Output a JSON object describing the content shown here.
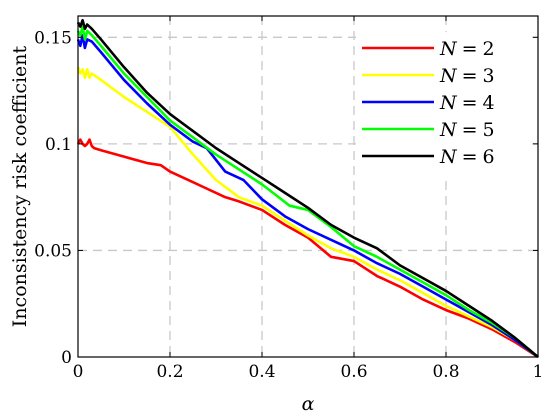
{
  "chart_data": {
    "type": "line",
    "title": "",
    "xlabel": "α",
    "ylabel": "Inconsistency risk coefficient",
    "xlim": [
      0,
      1
    ],
    "ylim": [
      0,
      0.16
    ],
    "xticks": [
      0,
      0.2,
      0.4,
      0.6,
      0.8,
      1
    ],
    "xtick_labels": [
      "0",
      "0.2",
      "0.4",
      "0.6",
      "0.8",
      "1"
    ],
    "yticks": [
      0,
      0.05,
      0.1,
      0.15
    ],
    "ytick_labels": [
      "0",
      "0.05",
      "0.1",
      "0.15"
    ],
    "grid": true,
    "legend_position": "top-right",
    "series": [
      {
        "name": "N = 2",
        "legend": {
          "var": "N",
          "eq": "=",
          "value": "2"
        },
        "color": "#ff0000",
        "x": [
          0,
          0.005,
          0.01,
          0.015,
          0.02,
          0.025,
          0.03,
          0.035,
          0.05,
          0.1,
          0.15,
          0.18,
          0.2,
          0.25,
          0.28,
          0.32,
          0.35,
          0.4,
          0.45,
          0.5,
          0.55,
          0.6,
          0.65,
          0.7,
          0.75,
          0.8,
          0.85,
          0.9,
          0.95,
          1.0
        ],
        "y": [
          0.1,
          0.102,
          0.1,
          0.099,
          0.1,
          0.102,
          0.099,
          0.098,
          0.097,
          0.094,
          0.091,
          0.09,
          0.087,
          0.082,
          0.079,
          0.075,
          0.073,
          0.069,
          0.062,
          0.056,
          0.047,
          0.045,
          0.038,
          0.033,
          0.027,
          0.022,
          0.018,
          0.013,
          0.007,
          0.0
        ]
      },
      {
        "name": "N = 3",
        "legend": {
          "var": "N",
          "eq": "=",
          "value": "3"
        },
        "color": "#ffff00",
        "x": [
          0,
          0.005,
          0.01,
          0.015,
          0.02,
          0.025,
          0.03,
          0.05,
          0.1,
          0.15,
          0.2,
          0.25,
          0.3,
          0.35,
          0.4,
          0.45,
          0.5,
          0.55,
          0.6,
          0.65,
          0.7,
          0.75,
          0.8,
          0.85,
          0.9,
          0.95,
          1.0
        ],
        "y": [
          0.136,
          0.133,
          0.135,
          0.131,
          0.135,
          0.131,
          0.133,
          0.13,
          0.122,
          0.115,
          0.108,
          0.095,
          0.083,
          0.075,
          0.071,
          0.064,
          0.057,
          0.051,
          0.047,
          0.041,
          0.036,
          0.03,
          0.024,
          0.019,
          0.014,
          0.008,
          0.0
        ]
      },
      {
        "name": "N = 4",
        "legend": {
          "var": "N",
          "eq": "=",
          "value": "4"
        },
        "color": "#0000ff",
        "x": [
          0,
          0.005,
          0.01,
          0.015,
          0.02,
          0.03,
          0.05,
          0.1,
          0.15,
          0.2,
          0.25,
          0.28,
          0.32,
          0.36,
          0.4,
          0.45,
          0.5,
          0.55,
          0.6,
          0.65,
          0.7,
          0.75,
          0.8,
          0.85,
          0.9,
          0.95,
          1.0
        ],
        "y": [
          0.149,
          0.146,
          0.151,
          0.145,
          0.149,
          0.148,
          0.143,
          0.13,
          0.119,
          0.109,
          0.101,
          0.098,
          0.087,
          0.083,
          0.074,
          0.066,
          0.06,
          0.055,
          0.05,
          0.044,
          0.039,
          0.033,
          0.027,
          0.021,
          0.015,
          0.008,
          0.0
        ]
      },
      {
        "name": "N = 5",
        "legend": {
          "var": "N",
          "eq": "=",
          "value": "5"
        },
        "color": "#00ff00",
        "x": [
          0,
          0.005,
          0.01,
          0.015,
          0.02,
          0.03,
          0.05,
          0.1,
          0.15,
          0.2,
          0.25,
          0.3,
          0.35,
          0.4,
          0.43,
          0.46,
          0.5,
          0.55,
          0.6,
          0.65,
          0.7,
          0.75,
          0.8,
          0.85,
          0.9,
          0.95,
          1.0
        ],
        "y": [
          0.153,
          0.151,
          0.155,
          0.149,
          0.153,
          0.151,
          0.146,
          0.133,
          0.122,
          0.111,
          0.103,
          0.095,
          0.088,
          0.081,
          0.076,
          0.071,
          0.069,
          0.061,
          0.052,
          0.047,
          0.041,
          0.035,
          0.029,
          0.022,
          0.016,
          0.009,
          0.0
        ]
      },
      {
        "name": "N = 6",
        "legend": {
          "var": "N",
          "eq": "=",
          "value": "6"
        },
        "color": "#000000",
        "x": [
          0,
          0.005,
          0.01,
          0.015,
          0.02,
          0.03,
          0.05,
          0.1,
          0.15,
          0.2,
          0.25,
          0.3,
          0.35,
          0.4,
          0.45,
          0.5,
          0.55,
          0.6,
          0.65,
          0.7,
          0.75,
          0.8,
          0.85,
          0.9,
          0.95,
          1.0
        ],
        "y": [
          0.157,
          0.155,
          0.158,
          0.154,
          0.156,
          0.154,
          0.149,
          0.136,
          0.124,
          0.114,
          0.106,
          0.098,
          0.091,
          0.084,
          0.077,
          0.07,
          0.062,
          0.056,
          0.051,
          0.043,
          0.037,
          0.031,
          0.024,
          0.017,
          0.009,
          0.0
        ]
      }
    ]
  }
}
